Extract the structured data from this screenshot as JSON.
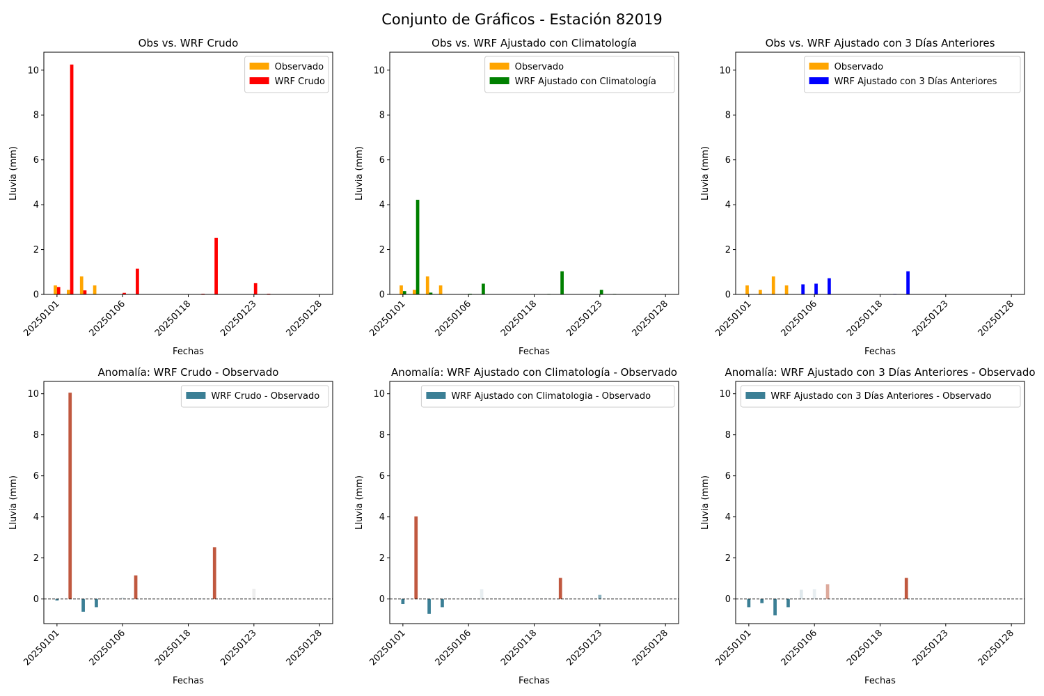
{
  "figure_title": "Conjunto de Gráficos - Estación 82019",
  "colors": {
    "observed": "#ffa500",
    "wrf_raw": "#ff0000",
    "wrf_clim": "#008000",
    "wrf_3d": "#0000ff",
    "anom_negative": "#3b7f95",
    "anom_positive": "#c0583f",
    "anom_light_negative": "#dfe8ec",
    "anom_light_positive": "#ddaa9c"
  },
  "chart_data": [
    {
      "type": "bar",
      "title": "Obs vs. WRF Crudo",
      "xlabel": "Fechas",
      "ylabel": "Lluvia (mm)",
      "ylim": [
        0,
        10.8
      ],
      "yticks": [
        0,
        2,
        4,
        6,
        8,
        10
      ],
      "x_index_range": [
        -1,
        21
      ],
      "xtick_labels": [
        "20250101",
        "20250106",
        "20250118",
        "20250123",
        "20250128"
      ],
      "xtick_index": [
        0,
        5,
        10,
        15,
        20
      ],
      "legend_position": "top-right",
      "series": [
        {
          "name": "Observado",
          "color": "#ffa500",
          "offset": -0.125,
          "values": [
            0.4,
            0.2,
            0.8,
            0.4,
            0,
            0,
            0,
            0,
            0,
            0,
            0,
            0,
            0,
            0,
            0,
            0,
            0,
            0,
            0,
            0,
            0
          ]
        },
        {
          "name": "WRF Crudo",
          "color": "#ff0000",
          "offset": 0.125,
          "values": [
            0.33,
            10.25,
            0.18,
            0,
            0,
            0.07,
            1.15,
            0,
            0,
            0,
            0,
            0.03,
            2.52,
            0,
            0,
            0.5,
            0.03,
            0,
            0,
            0,
            0
          ]
        }
      ]
    },
    {
      "type": "bar",
      "title": "Obs vs. WRF Ajustado con Climatología",
      "xlabel": "Fechas",
      "ylabel": "Lluvia (mm)",
      "ylim": [
        0,
        10.8
      ],
      "yticks": [
        0,
        2,
        4,
        6,
        8,
        10
      ],
      "x_index_range": [
        -1,
        21
      ],
      "xtick_labels": [
        "20250101",
        "20250106",
        "20250118",
        "20250123",
        "20250128"
      ],
      "xtick_index": [
        0,
        5,
        10,
        15,
        20
      ],
      "legend_position": "top-right",
      "series": [
        {
          "name": "Observado",
          "color": "#ffa500",
          "offset": -0.125,
          "values": [
            0.4,
            0.2,
            0.8,
            0.4,
            0,
            0,
            0,
            0,
            0,
            0,
            0,
            0,
            0,
            0,
            0,
            0,
            0,
            0,
            0,
            0,
            0
          ]
        },
        {
          "name": "WRF Ajustado con Climatología",
          "color": "#008000",
          "offset": 0.125,
          "values": [
            0.15,
            4.22,
            0.08,
            0,
            0,
            0.03,
            0.48,
            0,
            0,
            0,
            0,
            0.02,
            1.03,
            0,
            0,
            0.2,
            0.02,
            0,
            0,
            0,
            0
          ]
        }
      ]
    },
    {
      "type": "bar",
      "title": "Obs vs. WRF Ajustado con 3 Días Anteriores",
      "xlabel": "Fechas",
      "ylabel": "Lluvia (mm)",
      "ylim": [
        0,
        10.8
      ],
      "yticks": [
        0,
        2,
        4,
        6,
        8,
        10
      ],
      "x_index_range": [
        -1,
        21
      ],
      "xtick_labels": [
        "20250101",
        "20250106",
        "20250118",
        "20250123",
        "20250128"
      ],
      "xtick_index": [
        0,
        5,
        10,
        15,
        20
      ],
      "legend_position": "top-right",
      "series": [
        {
          "name": "Observado",
          "color": "#ffa500",
          "offset": -0.125,
          "values": [
            0.4,
            0.2,
            0.8,
            0.4,
            0,
            0,
            0,
            0,
            0,
            0,
            0,
            0,
            0,
            0,
            0,
            0,
            0,
            0,
            0,
            0,
            0
          ]
        },
        {
          "name": "WRF Ajustado con 3 Días Anteriores",
          "color": "#0000ff",
          "offset": 0.125,
          "values": [
            0,
            0,
            0,
            0,
            0.45,
            0.48,
            0.72,
            0,
            0,
            0,
            0,
            0.02,
            1.03,
            0,
            0,
            0,
            0,
            0,
            0,
            0,
            0
          ]
        }
      ]
    },
    {
      "type": "bar",
      "title": "Anomalía: WRF Crudo - Observado",
      "xlabel": "Fechas",
      "ylabel": "Lluvia (mm)",
      "ylim": [
        -1.2,
        10.6
      ],
      "yticks": [
        0,
        2,
        4,
        6,
        8,
        10
      ],
      "x_index_range": [
        -1,
        21
      ],
      "xtick_labels": [
        "20250101",
        "20250106",
        "20250118",
        "20250123",
        "20250128"
      ],
      "xtick_index": [
        0,
        5,
        10,
        15,
        20
      ],
      "legend_position": "top-right",
      "zero_line": true,
      "series": [
        {
          "name": "WRF Crudo - Observado",
          "color": "#3b7f95",
          "offset": 0,
          "values": [
            -0.07,
            10.05,
            -0.62,
            -0.4,
            0,
            0.07,
            1.15,
            0,
            0,
            0,
            0,
            0.03,
            2.52,
            0,
            0,
            0.5,
            0.03,
            0,
            0,
            0,
            0
          ],
          "bar_colors": [
            "#3b7f95",
            "#c0583f",
            "#3b7f95",
            "#3b7f95",
            "#3b7f95",
            "#dfe8ec",
            "#c0583f",
            "#3b7f95",
            "#3b7f95",
            "#3b7f95",
            "#3b7f95",
            "#dfe8ec",
            "#c0583f",
            "#3b7f95",
            "#3b7f95",
            "#eeeeee",
            "#dfe8ec",
            "#3b7f95",
            "#3b7f95",
            "#3b7f95",
            "#3b7f95"
          ]
        }
      ]
    },
    {
      "type": "bar",
      "title": "Anomalía: WRF Ajustado con Climatología - Observado",
      "xlabel": "Fechas",
      "ylabel": "Lluvia (mm)",
      "ylim": [
        -1.2,
        10.6
      ],
      "yticks": [
        0,
        2,
        4,
        6,
        8,
        10
      ],
      "x_index_range": [
        -1,
        21
      ],
      "xtick_labels": [
        "20250101",
        "20250106",
        "20250118",
        "20250123",
        "20250128"
      ],
      "xtick_index": [
        0,
        5,
        10,
        15,
        20
      ],
      "legend_position": "top-right",
      "zero_line": true,
      "series": [
        {
          "name": "WRF Ajustado con Climatologia - Observado",
          "color": "#3b7f95",
          "offset": 0,
          "values": [
            -0.25,
            4.02,
            -0.72,
            -0.4,
            0,
            0.03,
            0.48,
            0,
            0,
            0,
            0,
            0.02,
            1.03,
            0,
            0,
            0.2,
            0.02,
            0,
            0,
            0,
            0
          ],
          "bar_colors": [
            "#3b7f95",
            "#c0583f",
            "#3b7f95",
            "#3b7f95",
            "#3b7f95",
            "#dfe8ec",
            "#e8eef1",
            "#3b7f95",
            "#3b7f95",
            "#3b7f95",
            "#3b7f95",
            "#dfe8ec",
            "#c0583f",
            "#3b7f95",
            "#3b7f95",
            "#8fb3c0",
            "#dfe8ec",
            "#3b7f95",
            "#3b7f95",
            "#3b7f95",
            "#3b7f95"
          ]
        }
      ]
    },
    {
      "type": "bar",
      "title": "Anomalía: WRF Ajustado con 3 Días Anteriores - Observado",
      "xlabel": "Fechas",
      "ylabel": "Lluvia (mm)",
      "ylim": [
        -1.2,
        10.6
      ],
      "yticks": [
        0,
        2,
        4,
        6,
        8,
        10
      ],
      "x_index_range": [
        -1,
        21
      ],
      "xtick_labels": [
        "20250101",
        "20250106",
        "20250118",
        "20250123",
        "20250128"
      ],
      "xtick_index": [
        0,
        5,
        10,
        15,
        20
      ],
      "legend_position": "top-right",
      "zero_line": true,
      "series": [
        {
          "name": "WRF Ajustado con 3 Días Anteriores - Observado",
          "color": "#3b7f95",
          "offset": 0,
          "values": [
            -0.4,
            -0.2,
            -0.8,
            -0.4,
            0.45,
            0.48,
            0.72,
            0,
            0,
            0,
            0,
            0.02,
            1.03,
            0,
            0,
            0,
            0,
            0,
            0,
            0,
            0
          ],
          "bar_colors": [
            "#3b7f95",
            "#3b7f95",
            "#3b7f95",
            "#3b7f95",
            "#dfe8ec",
            "#e8eef1",
            "#ddaa9c",
            "#3b7f95",
            "#3b7f95",
            "#3b7f95",
            "#3b7f95",
            "#dfe8ec",
            "#c0583f",
            "#3b7f95",
            "#3b7f95",
            "#3b7f95",
            "#3b7f95",
            "#3b7f95",
            "#3b7f95",
            "#3b7f95",
            "#3b7f95"
          ]
        }
      ]
    }
  ]
}
